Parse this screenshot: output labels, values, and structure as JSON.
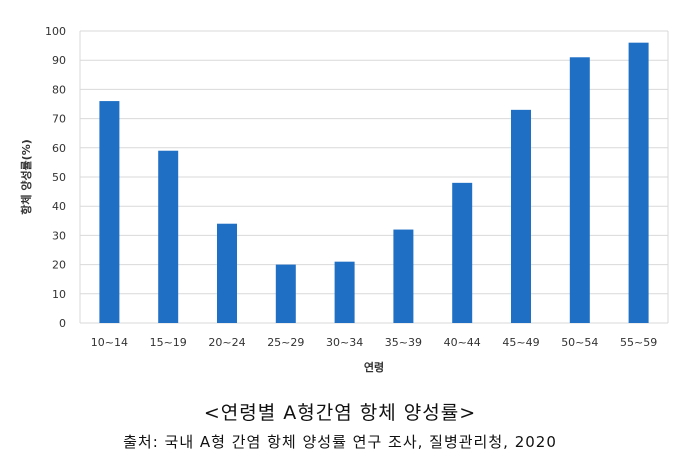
{
  "chart_data": {
    "type": "bar",
    "categories": [
      "10~14",
      "15~19",
      "20~24",
      "25~29",
      "30~34",
      "35~39",
      "40~44",
      "45~49",
      "50~54",
      "55~59"
    ],
    "values": [
      76,
      59,
      34,
      20,
      21,
      32,
      48,
      73,
      91,
      96
    ],
    "xlabel": "연령",
    "ylabel": "항체 양성률(%)",
    "ylim": [
      0,
      100
    ],
    "yticks": [
      0,
      10,
      20,
      30,
      40,
      50,
      60,
      70,
      80,
      90,
      100
    ],
    "grid": true,
    "bar_color": "#1f6fc5"
  },
  "caption": "<연령별 A형간염 항체 양성률>",
  "source": "출처: 국내 A형 간염 항체 양성률 연구 조사, 질병관리청, 2020"
}
